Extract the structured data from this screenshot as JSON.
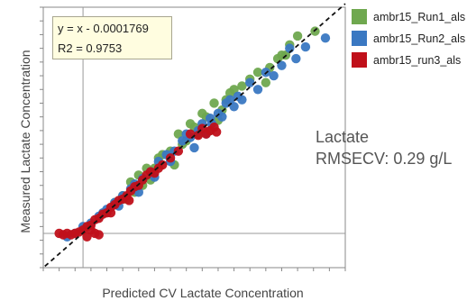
{
  "chart_data": {
    "type": "scatter",
    "title": "",
    "xlabel": "Predicted CV Lactate Concentration",
    "ylabel": "Measured Lactate Concentration",
    "xlim": [
      -0.5,
      3.3
    ],
    "ylim": [
      -0.5,
      3.3
    ],
    "grid": false,
    "legend_position": "top-right",
    "reference_lines": {
      "vertical_x": 0,
      "horizontal_y": 0,
      "fit_line": "y = x"
    },
    "fit_equation": "y = x - 0.0001769",
    "r2_text": "R2 = 0.9753",
    "annotation": [
      "Lactate",
      "RMSECV: 0.29 g/L"
    ],
    "series": [
      {
        "name": "ambr15_Run1_als",
        "color": "#6fa84f",
        "points": [
          [
            2.92,
            2.95
          ],
          [
            2.7,
            2.88
          ],
          [
            2.6,
            2.75
          ],
          [
            2.55,
            2.6
          ],
          [
            2.45,
            2.55
          ],
          [
            2.35,
            2.42
          ],
          [
            2.5,
            2.6
          ],
          [
            2.1,
            2.25
          ],
          [
            2.0,
            2.15
          ],
          [
            1.9,
            2.1
          ],
          [
            1.8,
            1.95
          ],
          [
            1.85,
            2.05
          ],
          [
            1.75,
            1.8
          ],
          [
            1.65,
            1.9
          ],
          [
            1.55,
            1.7
          ],
          [
            1.5,
            1.75
          ],
          [
            1.4,
            1.55
          ],
          [
            1.45,
            1.45
          ],
          [
            1.3,
            1.35
          ],
          [
            1.2,
            1.45
          ],
          [
            1.35,
            1.6
          ],
          [
            1.1,
            1.2
          ],
          [
            1.0,
            1.15
          ],
          [
            0.9,
            0.95
          ],
          [
            0.8,
            0.95
          ],
          [
            0.75,
            0.7
          ],
          [
            0.7,
            0.85
          ],
          [
            0.6,
            0.75
          ],
          [
            0.5,
            0.55
          ],
          [
            0.4,
            0.45
          ],
          [
            0.55,
            0.5
          ],
          [
            1.15,
            1.0
          ],
          [
            0.95,
            1.1
          ],
          [
            2.2,
            2.35
          ],
          [
            1.6,
            1.5
          ],
          [
            0.85,
            0.78
          ],
          [
            0.65,
            0.6
          ],
          [
            1.25,
            1.3
          ],
          [
            1.7,
            1.65
          ],
          [
            2.3,
            2.2
          ]
        ]
      },
      {
        "name": "ambr15_Run2_als",
        "color": "#3a78c2",
        "points": [
          [
            3.05,
            2.85
          ],
          [
            2.8,
            2.72
          ],
          [
            2.68,
            2.55
          ],
          [
            2.5,
            2.45
          ],
          [
            2.4,
            2.3
          ],
          [
            2.3,
            2.35
          ],
          [
            2.2,
            2.1
          ],
          [
            2.0,
            1.95
          ],
          [
            1.95,
            2.0
          ],
          [
            1.9,
            1.85
          ],
          [
            1.8,
            1.9
          ],
          [
            1.7,
            1.75
          ],
          [
            1.62,
            1.6
          ],
          [
            1.6,
            1.68
          ],
          [
            1.5,
            1.6
          ],
          [
            1.45,
            1.5
          ],
          [
            1.35,
            1.4
          ],
          [
            1.25,
            1.35
          ],
          [
            1.15,
            1.2
          ],
          [
            1.05,
            1.15
          ],
          [
            0.95,
            1.05
          ],
          [
            0.85,
            0.9
          ],
          [
            0.75,
            0.8
          ],
          [
            0.6,
            0.65
          ],
          [
            0.5,
            0.55
          ],
          [
            0.4,
            0.45
          ],
          [
            0.3,
            0.35
          ],
          [
            0.2,
            0.25
          ],
          [
            0.1,
            0.15
          ],
          [
            0.0,
            0.1
          ],
          [
            -0.1,
            0.0
          ],
          [
            -0.2,
            -0.05
          ],
          [
            1.3,
            1.45
          ],
          [
            1.55,
            1.45
          ],
          [
            1.75,
            1.7
          ],
          [
            0.9,
            0.82
          ],
          [
            0.7,
            0.6
          ],
          [
            0.45,
            0.4
          ],
          [
            0.25,
            0.3
          ],
          [
            2.6,
            2.7
          ],
          [
            1.4,
            1.25
          ],
          [
            1.1,
            1.05
          ],
          [
            0.65,
            0.72
          ],
          [
            1.85,
            1.95
          ],
          [
            2.1,
            2.2
          ]
        ]
      },
      {
        "name": "ambr15_run3_als",
        "color": "#c0101a",
        "points": [
          [
            1.68,
            1.48
          ],
          [
            1.6,
            1.5
          ],
          [
            1.55,
            1.45
          ],
          [
            1.45,
            1.43
          ],
          [
            1.35,
            1.45
          ],
          [
            1.2,
            1.2
          ],
          [
            1.1,
            1.1
          ],
          [
            1.0,
            1.0
          ],
          [
            0.95,
            0.95
          ],
          [
            0.9,
            0.88
          ],
          [
            0.8,
            0.85
          ],
          [
            0.75,
            0.78
          ],
          [
            0.7,
            0.7
          ],
          [
            0.65,
            0.68
          ],
          [
            0.6,
            0.62
          ],
          [
            0.55,
            0.55
          ],
          [
            0.5,
            0.5
          ],
          [
            0.45,
            0.48
          ],
          [
            0.4,
            0.42
          ],
          [
            0.35,
            0.38
          ],
          [
            0.3,
            0.3
          ],
          [
            0.25,
            0.28
          ],
          [
            0.2,
            0.22
          ],
          [
            0.15,
            0.2
          ],
          [
            0.1,
            0.12
          ],
          [
            0.05,
            0.1
          ],
          [
            0.0,
            0.05
          ],
          [
            -0.05,
            0.02
          ],
          [
            -0.1,
            0.0
          ],
          [
            -0.15,
            -0.02
          ],
          [
            -0.2,
            0.0
          ],
          [
            -0.25,
            -0.02
          ],
          [
            -0.3,
            0.0
          ],
          [
            0.15,
            0.0
          ],
          [
            0.1,
            0.05
          ],
          [
            0.2,
            -0.02
          ],
          [
            0.35,
            0.3
          ],
          [
            1.65,
            1.55
          ],
          [
            1.5,
            1.53
          ],
          [
            0.85,
            0.9
          ],
          [
            0.58,
            0.48
          ],
          [
            0.05,
            -0.05
          ]
        ]
      }
    ]
  },
  "eq_box": {
    "line1": "y = x - 0.0001769",
    "line2": "R2 = 0.9753"
  },
  "metric": {
    "line1": "Lactate",
    "line2": "RMSECV: 0.29 g/L"
  }
}
